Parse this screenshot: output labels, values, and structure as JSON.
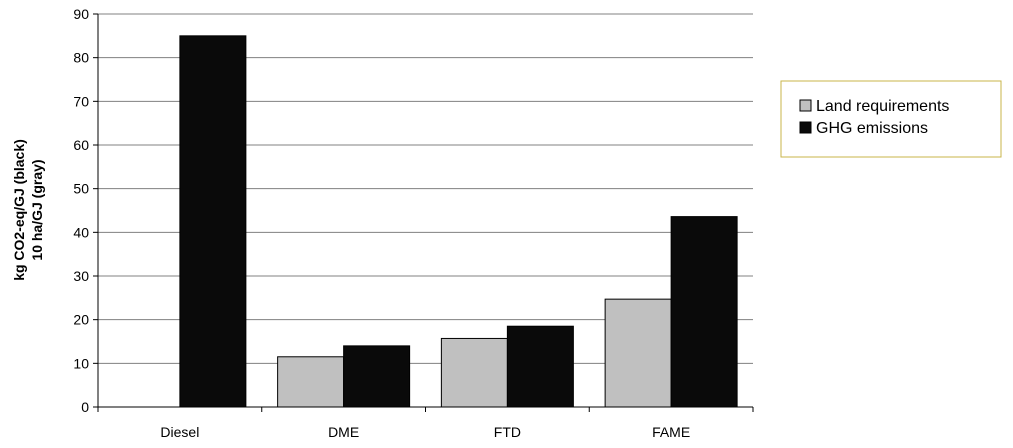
{
  "chart_data": {
    "type": "bar",
    "categories": [
      "Diesel",
      "DME",
      "FTD",
      "FAME"
    ],
    "series": [
      {
        "name": "Land requirements",
        "color": "#c0c0c0",
        "values": [
          0,
          11.5,
          15.7,
          24.7
        ]
      },
      {
        "name": "GHG emissions",
        "color": "#0a0a0a",
        "values": [
          85,
          14,
          18.5,
          43.6
        ]
      }
    ],
    "title": "",
    "xlabel": "",
    "ylabel_lines": [
      "kg CO2-eq/GJ (black)",
      "10 ha/GJ (gray)"
    ],
    "ylim": [
      0,
      90
    ],
    "yticks": [
      0,
      10,
      20,
      30,
      40,
      50,
      60,
      70,
      80,
      90
    ],
    "grid": "horizontal",
    "legend_position": "right",
    "legend_border_color": "#c8b64a"
  }
}
